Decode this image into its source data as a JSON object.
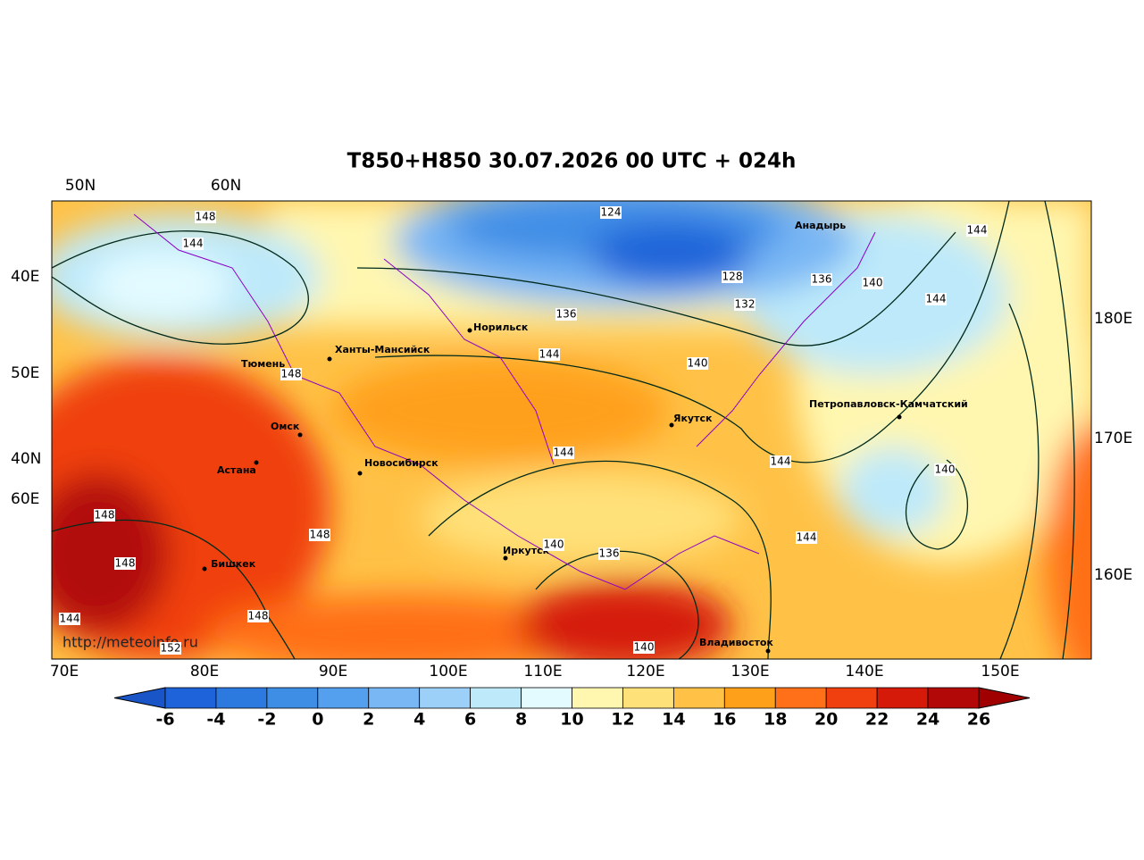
{
  "title": "T850+H850 30.07.2026 00 UTC + 024h",
  "credit": "http://meteoinfo.ru",
  "grid_labels": {
    "top": [
      "50N",
      "60N"
    ],
    "left": [
      "40E",
      "50E",
      "40N",
      "60E"
    ],
    "right": [
      "180E",
      "170E",
      "160E"
    ],
    "bottom": [
      "70E",
      "80E",
      "90E",
      "100E",
      "110E",
      "120E",
      "130E",
      "140E",
      "150E"
    ]
  },
  "cities": [
    "Анадырь",
    "Норильск",
    "Ханты-Мансийск",
    "Тюмень",
    "Омск",
    "Астана",
    "Новосибирск",
    "Якутск",
    "Петропавловск-Камчатский",
    "Иркутск",
    "Бишкек",
    "Владивосток"
  ],
  "contour_labels": [
    148,
    144,
    124,
    144,
    128,
    136,
    140,
    132,
    144,
    136,
    144,
    140,
    148,
    144,
    144,
    140,
    148,
    148,
    140,
    136,
    144,
    148,
    148,
    144,
    152,
    140
  ],
  "colorbar": {
    "ticks": [
      -6,
      -4,
      -2,
      0,
      2,
      4,
      6,
      8,
      10,
      12,
      14,
      16,
      18,
      20,
      22,
      24,
      26
    ],
    "colors": [
      "#1e63d9",
      "#2c7ae0",
      "#3f8ee6",
      "#55a0ee",
      "#78b6f4",
      "#9dd0f8",
      "#bde9fa",
      "#e3fbff",
      "#fff7b0",
      "#ffe17a",
      "#ffc247",
      "#ffa01a",
      "#ff7018",
      "#f04010",
      "#d61a0a",
      "#b20808"
    ],
    "under": "#1a55c8",
    "over": "#a00000"
  }
}
